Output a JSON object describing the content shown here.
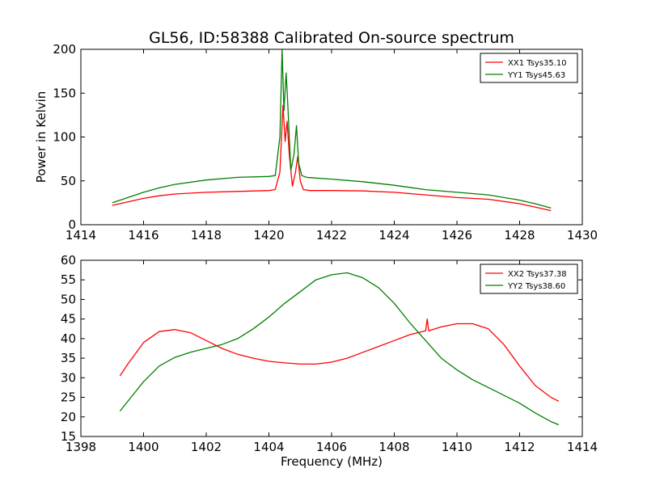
{
  "figure": {
    "title": "GL56, ID:58388 Calibrated On-source spectrum"
  },
  "colors": {
    "xx": "#ff0000",
    "yy": "#008000",
    "axes": "#000000"
  },
  "chart_data": [
    {
      "type": "line",
      "title": "GL56, ID:58388 Calibrated On-source spectrum",
      "xlabel": "",
      "ylabel": "Power in Kelvin",
      "xlim": [
        1414,
        1430
      ],
      "ylim": [
        0,
        200
      ],
      "xticks": [
        1414,
        1416,
        1418,
        1420,
        1422,
        1424,
        1426,
        1428,
        1430
      ],
      "yticks": [
        0,
        50,
        100,
        150,
        200
      ],
      "grid": false,
      "legend_position": "top-right",
      "series": [
        {
          "name": "XX1 Tsys35.10",
          "color": "#ff0000",
          "x": [
            1415.0,
            1415.5,
            1416.0,
            1416.5,
            1417.0,
            1418.0,
            1419.0,
            1420.0,
            1420.2,
            1420.35,
            1420.45,
            1420.52,
            1420.58,
            1420.65,
            1420.75,
            1420.85,
            1420.92,
            1421.0,
            1421.1,
            1421.3,
            1422.0,
            1423.0,
            1424.0,
            1425.0,
            1426.0,
            1427.0,
            1428.0,
            1428.5,
            1429.0
          ],
          "y": [
            22,
            26,
            30,
            33,
            35,
            37,
            38,
            39,
            40,
            60,
            136,
            95,
            118,
            80,
            44,
            60,
            78,
            50,
            40,
            39,
            39,
            38.5,
            37,
            34,
            31,
            29,
            24,
            20,
            16
          ]
        },
        {
          "name": "YY1 Tsys45.63",
          "color": "#008000",
          "x": [
            1415.0,
            1415.5,
            1416.0,
            1416.5,
            1417.0,
            1418.0,
            1419.0,
            1420.0,
            1420.2,
            1420.35,
            1420.42,
            1420.48,
            1420.55,
            1420.6,
            1420.7,
            1420.8,
            1420.88,
            1420.95,
            1421.05,
            1421.2,
            1422.0,
            1423.0,
            1424.0,
            1425.0,
            1426.0,
            1427.0,
            1428.0,
            1428.5,
            1429.0
          ],
          "y": [
            25,
            31,
            37,
            42,
            46,
            51,
            54,
            55,
            56,
            100,
            200,
            130,
            173,
            140,
            62,
            80,
            113,
            70,
            56,
            54,
            52,
            49,
            45,
            40,
            37,
            34,
            28,
            24,
            19
          ]
        }
      ]
    },
    {
      "type": "line",
      "title": "",
      "xlabel": "Frequency (MHz)",
      "ylabel": "",
      "xlim": [
        1398,
        1414
      ],
      "ylim": [
        15,
        60
      ],
      "xticks": [
        1398,
        1400,
        1402,
        1404,
        1406,
        1408,
        1410,
        1412,
        1414
      ],
      "yticks": [
        15,
        20,
        25,
        30,
        35,
        40,
        45,
        50,
        55,
        60
      ],
      "grid": false,
      "legend_position": "top-right",
      "series": [
        {
          "name": "XX2 Tsys37.38",
          "color": "#ff0000",
          "x": [
            1399.25,
            1399.5,
            1400.0,
            1400.5,
            1401.0,
            1401.5,
            1402.0,
            1402.5,
            1403.0,
            1403.5,
            1404.0,
            1404.5,
            1405.0,
            1405.5,
            1406.0,
            1406.5,
            1407.0,
            1407.5,
            1408.0,
            1408.5,
            1409.0,
            1409.05,
            1409.1,
            1409.5,
            1410.0,
            1410.5,
            1411.0,
            1411.5,
            1412.0,
            1412.5,
            1413.0,
            1413.25
          ],
          "y": [
            30.5,
            33.5,
            39,
            41.8,
            42.3,
            41.5,
            39.5,
            37.5,
            36,
            35,
            34.2,
            33.8,
            33.5,
            33.5,
            34,
            35,
            36.5,
            38,
            39.5,
            41,
            42,
            45,
            42,
            43,
            43.8,
            43.8,
            42.5,
            38.5,
            33,
            28,
            25,
            24
          ]
        },
        {
          "name": "YY2 Tsys38.60",
          "color": "#008000",
          "x": [
            1399.25,
            1399.5,
            1400.0,
            1400.5,
            1401.0,
            1401.5,
            1402.0,
            1402.5,
            1403.0,
            1403.5,
            1404.0,
            1404.5,
            1405.0,
            1405.5,
            1406.0,
            1406.5,
            1407.0,
            1407.5,
            1408.0,
            1408.5,
            1409.0,
            1409.5,
            1410.0,
            1410.5,
            1411.0,
            1411.5,
            1412.0,
            1412.5,
            1413.0,
            1413.25
          ],
          "y": [
            21.5,
            24,
            29,
            33,
            35.2,
            36.5,
            37.5,
            38.5,
            40,
            42.5,
            45.5,
            49,
            52,
            55,
            56.3,
            56.8,
            55.5,
            53,
            49,
            44,
            39.5,
            35,
            32,
            29.5,
            27.5,
            25.5,
            23.5,
            21,
            18.8,
            18
          ]
        }
      ]
    }
  ]
}
